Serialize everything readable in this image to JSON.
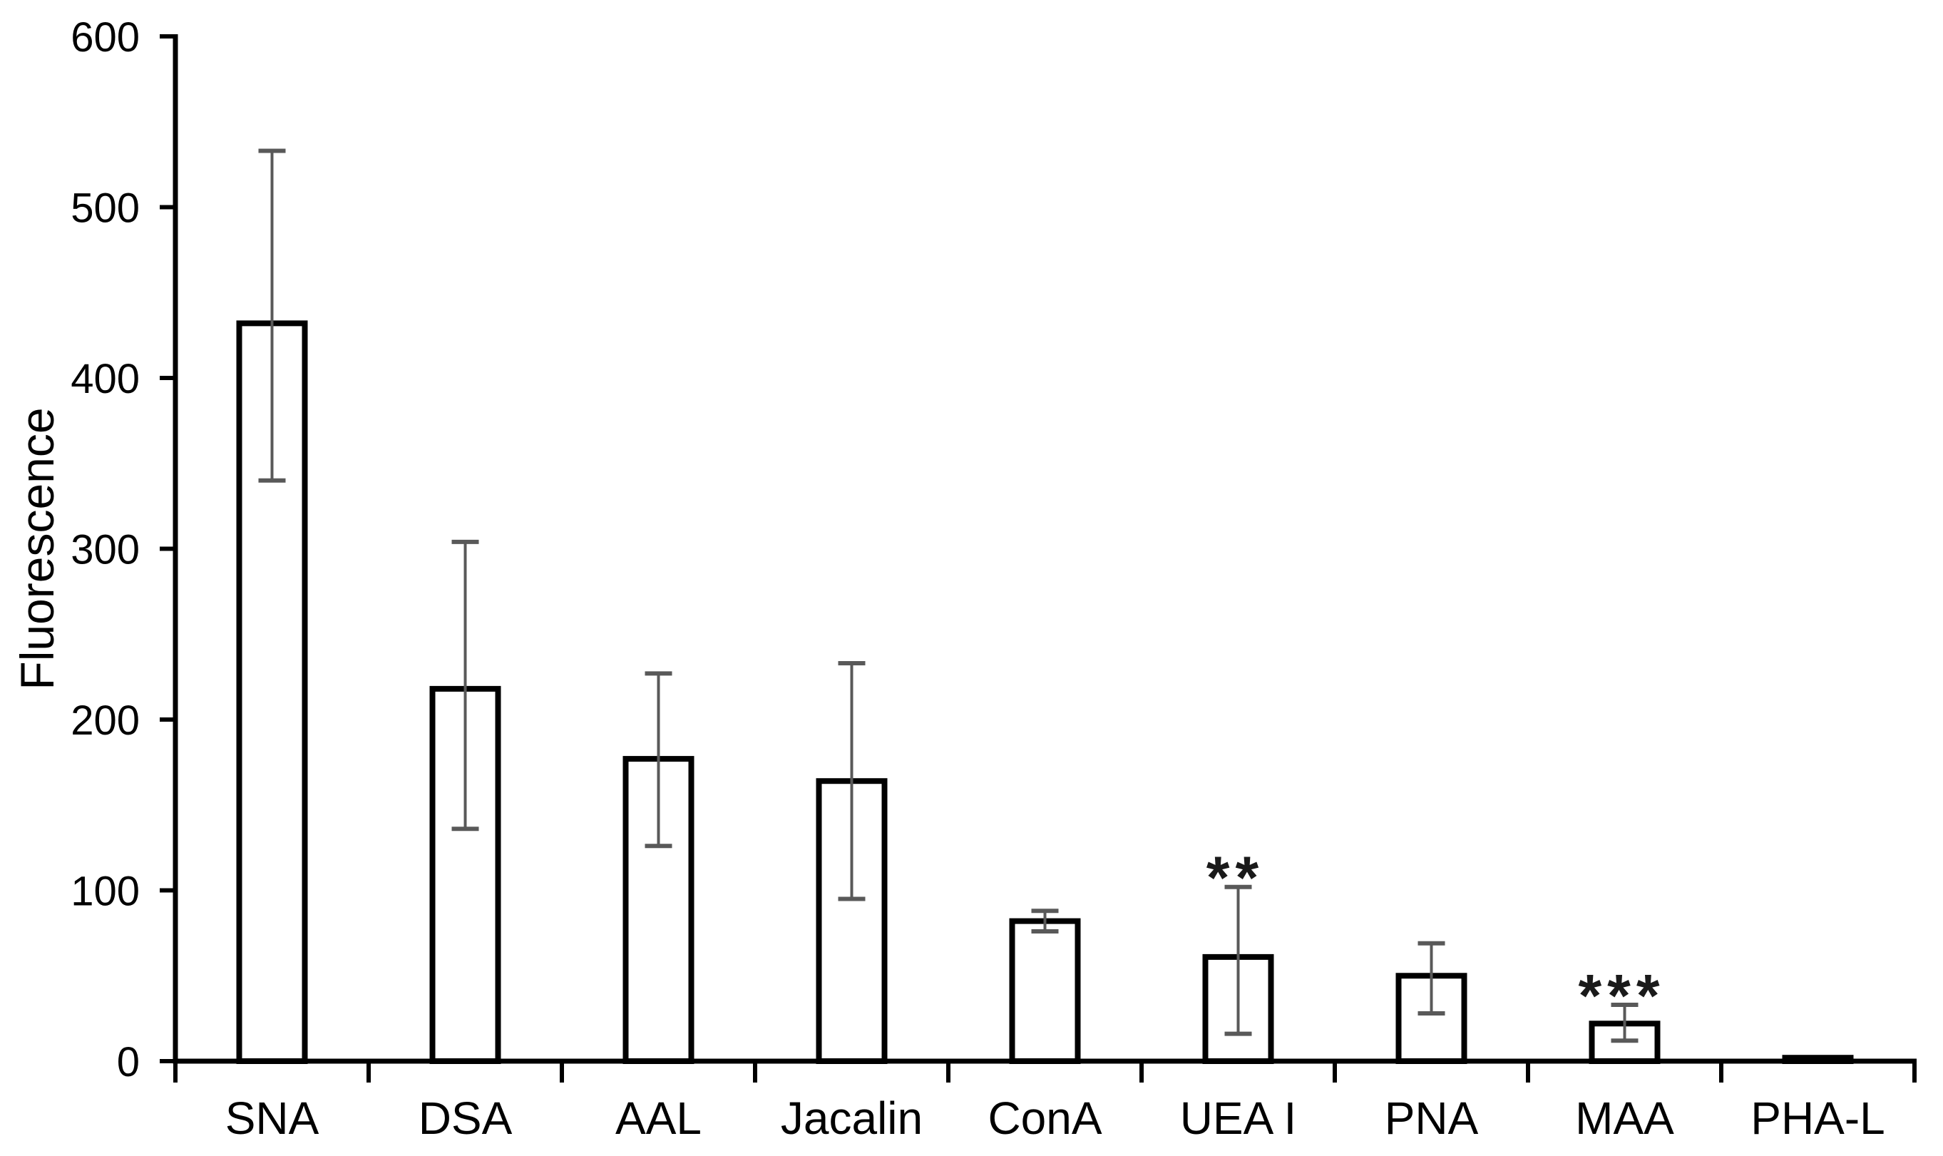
{
  "figure": {
    "background_color": "#ffffff",
    "title": "",
    "legend": null
  },
  "chart_data": {
    "type": "bar",
    "title": "",
    "xlabel": "",
    "ylabel": "Fluorescence",
    "categories": [
      "SNA",
      "DSA",
      "AAL",
      "Jacalin",
      "ConA",
      "UEA I",
      "PNA",
      "MAA",
      "PHA-L"
    ],
    "values": [
      432,
      218,
      177,
      164,
      82,
      61,
      50,
      22,
      2
    ],
    "error_high": [
      533,
      304,
      227,
      233,
      88,
      102,
      69,
      33,
      null
    ],
    "error_low": [
      340,
      136,
      126,
      95,
      76,
      16,
      28,
      12,
      null
    ],
    "annotations": [
      "",
      "",
      "",
      "",
      "",
      "**",
      "",
      "***",
      ""
    ],
    "ylim": [
      0,
      600
    ],
    "yticks": [
      0,
      100,
      200,
      300,
      400,
      500,
      600
    ],
    "grid": false,
    "legend_position": "none",
    "bar_fill": "#ffffff",
    "bar_stroke": "#000000",
    "axis_color": "#000000",
    "error_bar_color": "#595959",
    "annotation_color": "#1a1a1a"
  }
}
